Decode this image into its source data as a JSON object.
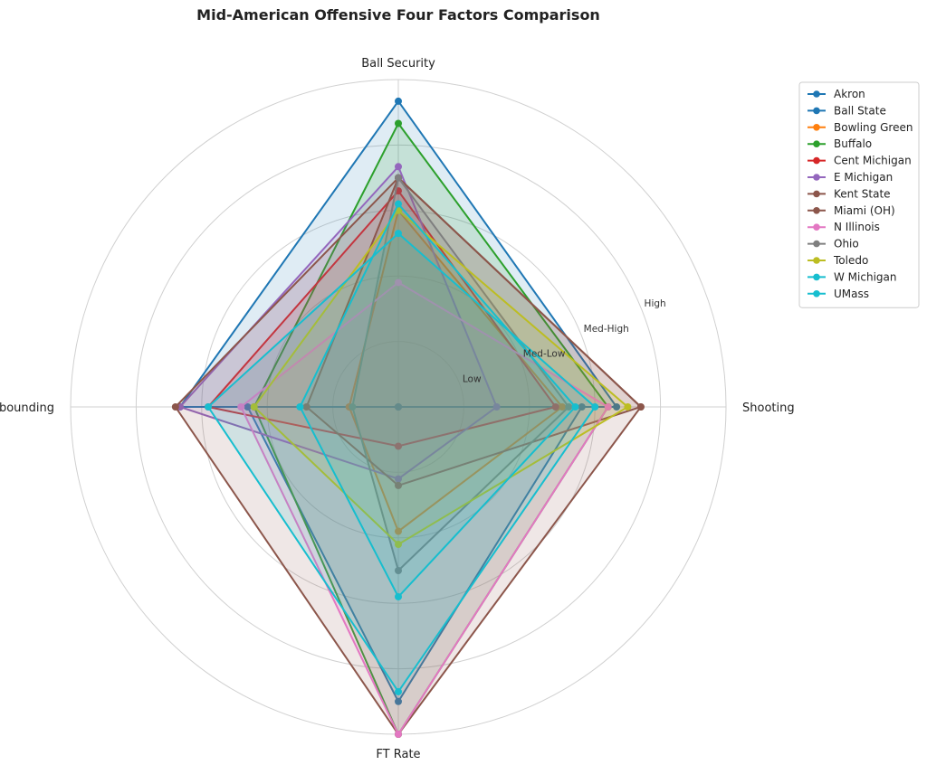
{
  "chart_data": {
    "type": "radar",
    "title": "Mid-American Offensive Four Factors Comparison",
    "axes": [
      "Ball Security",
      "Shooting",
      "FT Rate",
      "Off Rebounding"
    ],
    "rings": [
      {
        "value": 1,
        "label": "Low"
      },
      {
        "value": 2,
        "label": "Med-Low"
      },
      {
        "value": 3,
        "label": "Med-High"
      },
      {
        "value": 4,
        "label": "High"
      },
      {
        "value": 5,
        "label": ""
      }
    ],
    "range": [
      0,
      5
    ],
    "grid": true,
    "legend_position": "top-right",
    "series": [
      {
        "name": "Akron",
        "color": "#1f77b4",
        "values": [
          4.67,
          3.33,
          0.0,
          3.33
        ]
      },
      {
        "name": "Ball State",
        "color": "#1f77b4",
        "values": [
          0.0,
          2.8,
          4.5,
          2.3
        ]
      },
      {
        "name": "Bowling Green",
        "color": "#ff7f0e",
        "values": [
          3.0,
          2.5,
          1.9,
          0.75
        ]
      },
      {
        "name": "Buffalo",
        "color": "#2ca02c",
        "values": [
          4.33,
          3.2,
          5.0,
          2.2
        ]
      },
      {
        "name": "Cent Michigan",
        "color": "#d62728",
        "values": [
          3.3,
          2.4,
          0.6,
          2.9
        ]
      },
      {
        "name": "E Michigan",
        "color": "#9467bd",
        "values": [
          3.67,
          1.5,
          1.1,
          3.33
        ]
      },
      {
        "name": "Kent State",
        "color": "#8c564b",
        "values": [
          3.5,
          3.7,
          1.2,
          1.4
        ]
      },
      {
        "name": "Miami (OH)",
        "color": "#8c564b",
        "values": [
          3.5,
          3.7,
          5.0,
          3.4
        ]
      },
      {
        "name": "N Illinois",
        "color": "#e377c2",
        "values": [
          1.9,
          3.2,
          5.0,
          2.4
        ]
      },
      {
        "name": "Ohio",
        "color": "#7f7f7f",
        "values": [
          3.5,
          2.6,
          2.5,
          0.7
        ]
      },
      {
        "name": "Toledo",
        "color": "#bcbd22",
        "values": [
          3.0,
          3.5,
          2.1,
          2.2
        ]
      },
      {
        "name": "W Michigan",
        "color": "#17becf",
        "values": [
          3.1,
          2.7,
          2.9,
          1.5
        ]
      },
      {
        "name": "UMass",
        "color": "#17becf",
        "values": [
          2.65,
          3.0,
          4.35,
          2.9
        ]
      }
    ]
  }
}
